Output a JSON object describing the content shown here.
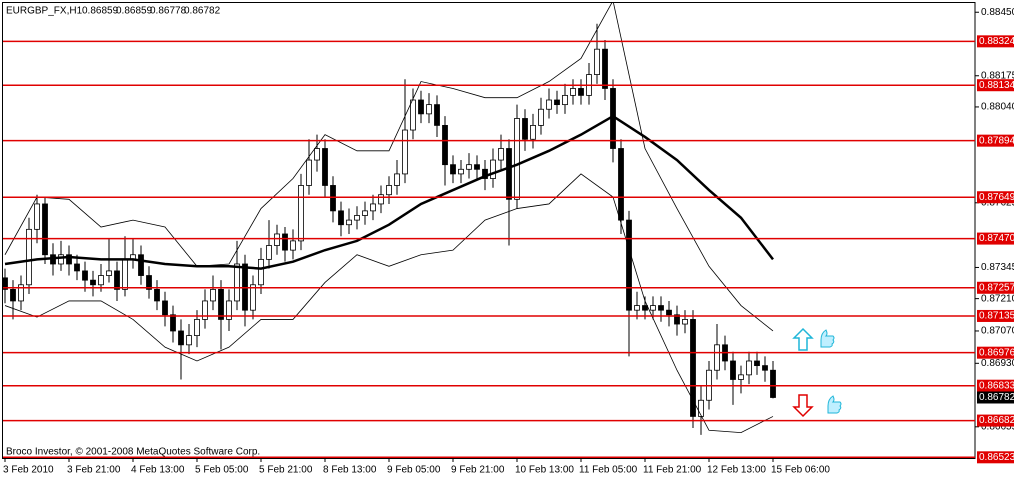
{
  "chart_data": {
    "type": "candlestick",
    "title": "EURGBP_FX,H1",
    "header_prices": [
      0.86859,
      0.86859,
      0.86778,
      0.86782
    ],
    "copyright": "Broco Investor, © 2001-2008 MetaQuotes Software Corp.",
    "categories": [
      "3 Feb 2010",
      null,
      null,
      null,
      null,
      null,
      null,
      null,
      "3 Feb 21:00",
      null,
      null,
      null,
      null,
      null,
      null,
      null,
      "4 Feb 13:00",
      null,
      null,
      null,
      null,
      null,
      null,
      null,
      "5 Feb 05:00",
      null,
      null,
      null,
      null,
      null,
      null,
      null,
      "5 Feb 21:00",
      null,
      null,
      null,
      null,
      null,
      null,
      null,
      "8 Feb 13:00",
      null,
      null,
      null,
      null,
      null,
      null,
      null,
      "9 Feb 05:00",
      null,
      null,
      null,
      null,
      null,
      null,
      null,
      "9 Feb 21:00",
      null,
      null,
      null,
      null,
      null,
      null,
      null,
      "10 Feb 13:00",
      null,
      null,
      null,
      null,
      null,
      null,
      null,
      "11 Feb 05:00",
      null,
      null,
      null,
      null,
      null,
      null,
      null,
      "11 Feb 21:00",
      null,
      null,
      null,
      null,
      null,
      null,
      null,
      "12 Feb 13:00",
      null,
      null,
      null,
      null,
      null,
      null,
      null,
      "15 Feb 06:00"
    ],
    "candles": [
      [
        0.873,
        0.8734,
        0.8719,
        0.8725
      ],
      [
        0.8725,
        0.8729,
        0.8712,
        0.872
      ],
      [
        0.872,
        0.8731,
        0.8716,
        0.8727
      ],
      [
        0.8727,
        0.8756,
        0.8723,
        0.8751
      ],
      [
        0.8751,
        0.8766,
        0.8745,
        0.8762
      ],
      [
        0.8762,
        0.8765,
        0.8736,
        0.874
      ],
      [
        0.874,
        0.8745,
        0.8731,
        0.8736
      ],
      [
        0.8736,
        0.8746,
        0.8733,
        0.874
      ],
      [
        0.874,
        0.8744,
        0.8731,
        0.8736
      ],
      [
        0.8736,
        0.874,
        0.8729,
        0.8733
      ],
      [
        0.8733,
        0.8737,
        0.8724,
        0.8729
      ],
      [
        0.8729,
        0.8733,
        0.8722,
        0.8727
      ],
      [
        0.8727,
        0.8736,
        0.8724,
        0.8731
      ],
      [
        0.8731,
        0.8747,
        0.8728,
        0.8733
      ],
      [
        0.8733,
        0.8737,
        0.872,
        0.8725
      ],
      [
        0.8725,
        0.8748,
        0.8722,
        0.8738
      ],
      [
        0.8738,
        0.8747,
        0.8734,
        0.874
      ],
      [
        0.874,
        0.8744,
        0.8727,
        0.8731
      ],
      [
        0.8731,
        0.8735,
        0.8721,
        0.8725
      ],
      [
        0.8725,
        0.8729,
        0.8716,
        0.872
      ],
      [
        0.872,
        0.8724,
        0.8709,
        0.8714
      ],
      [
        0.8714,
        0.8718,
        0.8702,
        0.8707
      ],
      [
        0.8707,
        0.8712,
        0.8686,
        0.8701
      ],
      [
        0.8701,
        0.871,
        0.8697,
        0.8705
      ],
      [
        0.8705,
        0.8716,
        0.87,
        0.8712
      ],
      [
        0.8712,
        0.8725,
        0.8708,
        0.872
      ],
      [
        0.872,
        0.8731,
        0.8716,
        0.8725
      ],
      [
        0.8725,
        0.8729,
        0.8699,
        0.8712
      ],
      [
        0.8712,
        0.8725,
        0.8707,
        0.872
      ],
      [
        0.872,
        0.8746,
        0.8716,
        0.8736
      ],
      [
        0.8736,
        0.874,
        0.8709,
        0.8716
      ],
      [
        0.8716,
        0.8731,
        0.8712,
        0.8727
      ],
      [
        0.8727,
        0.8743,
        0.8723,
        0.8738
      ],
      [
        0.8738,
        0.8755,
        0.8734,
        0.8744
      ],
      [
        0.8744,
        0.8753,
        0.874,
        0.8749
      ],
      [
        0.8749,
        0.8752,
        0.8737,
        0.8742
      ],
      [
        0.8742,
        0.8751,
        0.8738,
        0.8746
      ],
      [
        0.8746,
        0.8775,
        0.8742,
        0.877
      ],
      [
        0.877,
        0.879,
        0.8766,
        0.8781
      ],
      [
        0.8781,
        0.8792,
        0.8776,
        0.8786
      ],
      [
        0.8786,
        0.879,
        0.8765,
        0.877
      ],
      [
        0.877,
        0.8774,
        0.8754,
        0.8759
      ],
      [
        0.8759,
        0.8763,
        0.8748,
        0.8753
      ],
      [
        0.8753,
        0.876,
        0.8749,
        0.8755
      ],
      [
        0.8755,
        0.8761,
        0.8751,
        0.8757
      ],
      [
        0.8757,
        0.8763,
        0.8753,
        0.8759
      ],
      [
        0.8759,
        0.8766,
        0.8755,
        0.8762
      ],
      [
        0.8762,
        0.877,
        0.8758,
        0.8766
      ],
      [
        0.8766,
        0.8774,
        0.8762,
        0.877
      ],
      [
        0.877,
        0.8781,
        0.8766,
        0.8775
      ],
      [
        0.8775,
        0.8816,
        0.8771,
        0.8794
      ],
      [
        0.8794,
        0.8812,
        0.879,
        0.8807
      ],
      [
        0.8807,
        0.8811,
        0.8797,
        0.8801
      ],
      [
        0.8801,
        0.881,
        0.8797,
        0.8805
      ],
      [
        0.8805,
        0.8809,
        0.8791,
        0.8796
      ],
      [
        0.8796,
        0.88,
        0.877,
        0.8779
      ],
      [
        0.8779,
        0.8783,
        0.8771,
        0.8775
      ],
      [
        0.8775,
        0.8781,
        0.8771,
        0.8777
      ],
      [
        0.8777,
        0.8784,
        0.8773,
        0.8779
      ],
      [
        0.8779,
        0.8783,
        0.8773,
        0.8777
      ],
      [
        0.8777,
        0.8781,
        0.8768,
        0.8773
      ],
      [
        0.8773,
        0.8786,
        0.8769,
        0.8781
      ],
      [
        0.8781,
        0.8792,
        0.8777,
        0.8786
      ],
      [
        0.8786,
        0.879,
        0.8744,
        0.8764
      ],
      [
        0.8764,
        0.8805,
        0.876,
        0.8799
      ],
      [
        0.8799,
        0.8803,
        0.8785,
        0.879
      ],
      [
        0.879,
        0.8801,
        0.8786,
        0.8796
      ],
      [
        0.8796,
        0.8808,
        0.8792,
        0.8803
      ],
      [
        0.8803,
        0.8812,
        0.8799,
        0.8807
      ],
      [
        0.8807,
        0.8811,
        0.8801,
        0.8805
      ],
      [
        0.8805,
        0.8814,
        0.8801,
        0.8809
      ],
      [
        0.8809,
        0.8816,
        0.8805,
        0.8812
      ],
      [
        0.8812,
        0.8816,
        0.8805,
        0.8809
      ],
      [
        0.8809,
        0.8823,
        0.8805,
        0.8818
      ],
      [
        0.8818,
        0.884,
        0.8814,
        0.8829
      ],
      [
        0.8829,
        0.8833,
        0.8807,
        0.8812
      ],
      [
        0.8812,
        0.8816,
        0.878,
        0.8786
      ],
      [
        0.8786,
        0.879,
        0.8749,
        0.8755
      ],
      [
        0.8755,
        0.8759,
        0.8696,
        0.8716
      ],
      [
        0.8716,
        0.8724,
        0.8712,
        0.8718
      ],
      [
        0.8718,
        0.8722,
        0.8712,
        0.8716
      ],
      [
        0.8716,
        0.8722,
        0.8712,
        0.8718
      ],
      [
        0.8718,
        0.8722,
        0.8711,
        0.8716
      ],
      [
        0.8716,
        0.872,
        0.8709,
        0.8714
      ],
      [
        0.8714,
        0.8718,
        0.8705,
        0.871
      ],
      [
        0.871,
        0.8716,
        0.8706,
        0.8712
      ],
      [
        0.8712,
        0.8716,
        0.8665,
        0.867
      ],
      [
        0.867,
        0.8683,
        0.8662,
        0.8677
      ],
      [
        0.8677,
        0.8694,
        0.8673,
        0.869
      ],
      [
        0.869,
        0.871,
        0.8686,
        0.8701
      ],
      [
        0.8701,
        0.8705,
        0.869,
        0.8694
      ],
      [
        0.8694,
        0.8698,
        0.8675,
        0.8686
      ],
      [
        0.8686,
        0.8692,
        0.868,
        0.8688
      ],
      [
        0.8688,
        0.8698,
        0.8684,
        0.8694
      ],
      [
        0.8694,
        0.8698,
        0.8688,
        0.8692
      ],
      [
        0.8692,
        0.8696,
        0.8685,
        0.869
      ],
      [
        0.869,
        0.8694,
        0.86778,
        0.86782
      ]
    ],
    "up_color": "#ffffff",
    "down_color": "#000000",
    "ylim": [
      0.8652,
      0.8849
    ],
    "yticks": [
      {
        "value": 0.8845,
        "label": "0.88450"
      },
      0.88175,
      {
        "value": 0.8804,
        "label": "0.88040"
      },
      0.87625,
      0.87345,
      {
        "value": 0.8721,
        "label": "0.87210"
      },
      {
        "value": 0.8707,
        "label": "0.87070"
      },
      {
        "value": 0.8693,
        "label": "0.86930"
      },
      0.86655
    ],
    "levels": {
      "color": "#e00000",
      "values": [
        0.88324,
        0.88134,
        0.87894,
        0.87649,
        0.8747,
        0.87257,
        0.87135,
        0.86976,
        0.86833,
        0.86682,
        0.86523
      ],
      "value_labels": [
        "0.88324",
        "0.88134",
        "0.87894",
        "0.87649",
        "0.87470",
        "0.87257",
        "0.87135",
        "0.86976",
        "0.86833",
        "0.86682",
        "0.86523"
      ]
    },
    "last_price": 0.86782,
    "indicators": {
      "x": [
        0,
        4,
        8,
        12,
        16,
        20,
        24,
        28,
        32,
        36,
        40,
        44,
        48,
        52,
        56,
        60,
        64,
        68,
        72,
        76,
        80,
        84,
        88,
        92,
        96
      ],
      "series": [
        {
          "color": "#000000",
          "width": 2.5,
          "values": [
            0.8736,
            0.8738,
            0.8739,
            0.8738,
            0.8738,
            0.8736,
            0.8735,
            0.8735,
            0.8734,
            0.8737,
            0.8742,
            0.8746,
            0.8753,
            0.8762,
            0.8768,
            0.8774,
            0.8779,
            0.8785,
            0.8792,
            0.88,
            0.8791,
            0.8781,
            0.8768,
            0.8756,
            0.8738
          ]
        },
        {
          "color": "#000000",
          "width": 0.8,
          "values": [
            0.874,
            0.8765,
            0.8764,
            0.8752,
            0.8755,
            0.8752,
            0.8735,
            0.8736,
            0.876,
            0.8773,
            0.8792,
            0.8785,
            0.8785,
            0.8815,
            0.8812,
            0.8808,
            0.8808,
            0.8815,
            0.8825,
            0.885,
            0.8786,
            0.876,
            0.8735,
            0.8718,
            0.8707
          ]
        },
        {
          "color": "#000000",
          "width": 0.8,
          "values": [
            0.8718,
            0.8713,
            0.872,
            0.872,
            0.8712,
            0.87,
            0.8694,
            0.87,
            0.8712,
            0.8712,
            0.8728,
            0.874,
            0.8735,
            0.874,
            0.8742,
            0.8755,
            0.876,
            0.8762,
            0.8775,
            0.8765,
            0.872,
            0.869,
            0.8664,
            0.8663,
            0.867
          ]
        }
      ]
    }
  }
}
